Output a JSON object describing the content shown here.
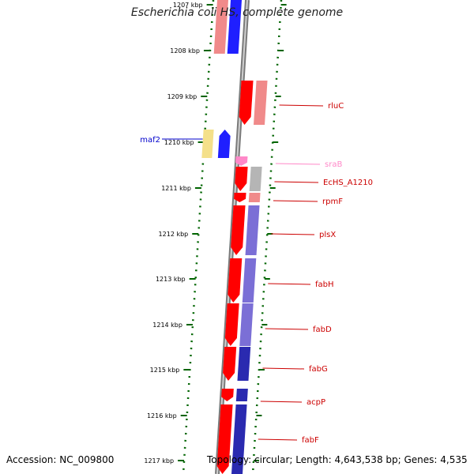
{
  "title": "Escherichia coli HS, complete genome",
  "footer": {
    "accession": "Accession: NC_009800",
    "summary": "Topology: circular; Length: 4,643,538 bp; Genes: 4,535"
  },
  "colors": {
    "forward_cds": "#ff0000",
    "reverse_cds": "#1f1fff",
    "rna": "#ff88c8",
    "cog_pink": "#f08a8a",
    "cog_purple": "#7b6fd6",
    "cog_yellow": "#f4e08a",
    "cog_gray": "#b5b5b5",
    "label_red": "#cc0000",
    "label_blue": "#0000cc",
    "label_pink": "#ff88c8",
    "scale_tick": "#006400"
  },
  "ticks": [
    {
      "label": "1207 kbp"
    },
    {
      "label": "1208 kbp"
    },
    {
      "label": "1209 kbp"
    },
    {
      "label": "1210 kbp"
    },
    {
      "label": "1211 kbp"
    },
    {
      "label": "1212 kbp"
    },
    {
      "label": "1213 kbp"
    },
    {
      "label": "1214 kbp"
    },
    {
      "label": "1215 kbp"
    },
    {
      "label": "1216 kbp"
    },
    {
      "label": "1217 kbp"
    }
  ],
  "genes": [
    {
      "name": "rluC",
      "strand": "forward",
      "type": "CDS"
    },
    {
      "name": "maf2",
      "strand": "reverse",
      "type": "CDS"
    },
    {
      "name": "sraB",
      "strand": "forward",
      "type": "RNA"
    },
    {
      "name": "EcHS_A1210",
      "strand": "forward",
      "type": "CDS"
    },
    {
      "name": "rpmF",
      "strand": "forward",
      "type": "CDS"
    },
    {
      "name": "plsX",
      "strand": "forward",
      "type": "CDS"
    },
    {
      "name": "fabH",
      "strand": "forward",
      "type": "CDS"
    },
    {
      "name": "fabD",
      "strand": "forward",
      "type": "CDS"
    },
    {
      "name": "fabG",
      "strand": "forward",
      "type": "CDS"
    },
    {
      "name": "acpP",
      "strand": "forward",
      "type": "CDS"
    },
    {
      "name": "fabF",
      "strand": "forward",
      "type": "CDS"
    }
  ]
}
